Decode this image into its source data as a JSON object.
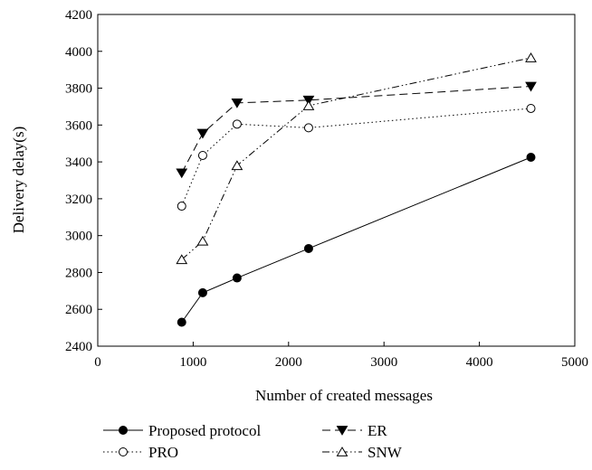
{
  "chart_data": {
    "type": "line",
    "title": "",
    "xlabel": "Number of created messages",
    "ylabel": "Delivery delay(s)",
    "xlim": [
      0,
      5000
    ],
    "ylim": [
      2400,
      4200
    ],
    "xticks": [
      0,
      1000,
      2000,
      3000,
      4000,
      5000
    ],
    "yticks": [
      2400,
      2600,
      2800,
      3000,
      3200,
      3400,
      3600,
      3800,
      4000,
      4200
    ],
    "grid": false,
    "legend_position": "bottom",
    "series": [
      {
        "name": "Proposed protocol",
        "marker": "filled-circle",
        "line_style": "solid",
        "x": [
          880,
          1100,
          1460,
          2210,
          4540
        ],
        "y": [
          2530,
          2690,
          2770,
          2930,
          3425
        ]
      },
      {
        "name": "ER",
        "marker": "filled-triangle-down",
        "line_style": "dashed",
        "x": [
          880,
          1100,
          1460,
          2210,
          4540
        ],
        "y": [
          3340,
          3555,
          3720,
          3735,
          3810
        ]
      },
      {
        "name": "PRO",
        "marker": "open-circle",
        "line_style": "dotted",
        "x": [
          880,
          1100,
          1460,
          2210,
          4540
        ],
        "y": [
          3160,
          3435,
          3605,
          3585,
          3690
        ]
      },
      {
        "name": "SNW",
        "marker": "open-triangle-up",
        "line_style": "dash-dot-dot",
        "x": [
          880,
          1100,
          1460,
          2210,
          4540
        ],
        "y": [
          2870,
          2970,
          3380,
          3705,
          3965
        ]
      }
    ]
  }
}
